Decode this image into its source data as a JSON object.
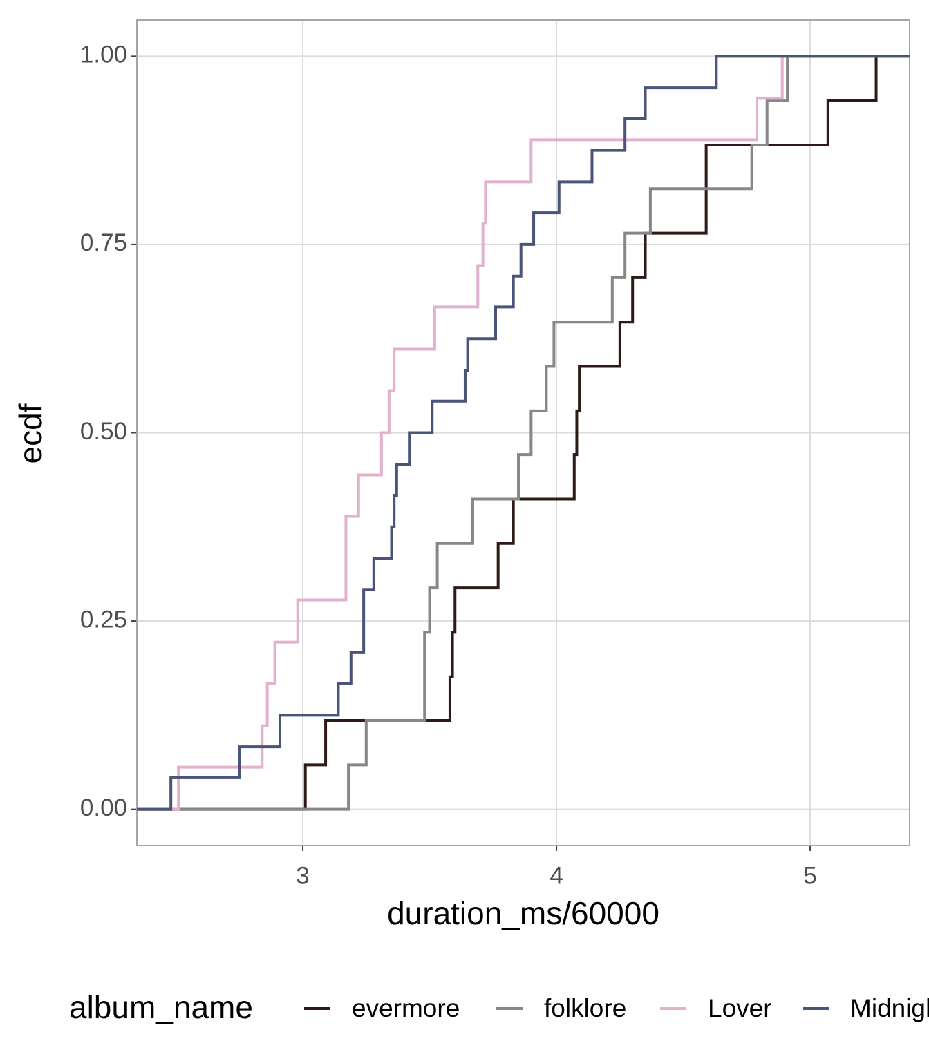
{
  "chart_data": {
    "type": "step",
    "x_label": "duration_ms/60000",
    "y_label": "ecdf",
    "legend_title": "album_name",
    "legend_position": "bottom",
    "grid": true,
    "xlim": [
      2.346,
      5.392
    ],
    "xticks": [
      3,
      4,
      5
    ],
    "ylim": [
      -0.048,
      1.048
    ],
    "yticks": [
      {
        "value": 0,
        "label": "0.00"
      },
      {
        "value": 0.25,
        "label": "0.25"
      },
      {
        "value": 0.5,
        "label": "0.50"
      },
      {
        "value": 0.75,
        "label": "0.75"
      },
      {
        "value": 1,
        "label": "1.00"
      }
    ],
    "series": [
      {
        "name": "evermore",
        "color": "#2e1a17",
        "x": [
          3.01,
          3.09,
          3.58,
          3.59,
          3.6,
          3.77,
          3.83,
          4.07,
          4.08,
          4.09,
          4.25,
          4.3,
          4.35,
          4.59,
          5.07,
          5.26
        ],
        "values": [
          0.059,
          0.118,
          0.176,
          0.235,
          0.294,
          0.353,
          0.412,
          0.471,
          0.529,
          0.588,
          0.647,
          0.706,
          0.765,
          0.882,
          0.941,
          1.0
        ]
      },
      {
        "name": "folklore",
        "color": "#878787",
        "x": [
          3.18,
          3.25,
          3.48,
          3.5,
          3.53,
          3.67,
          3.85,
          3.9,
          3.96,
          3.99,
          4.22,
          4.27,
          4.37,
          4.77,
          4.83,
          4.91
        ],
        "values": [
          0.059,
          0.118,
          0.235,
          0.294,
          0.353,
          0.412,
          0.471,
          0.529,
          0.588,
          0.647,
          0.706,
          0.765,
          0.824,
          0.882,
          0.941,
          1.0
        ]
      },
      {
        "name": "Lover",
        "color": "#e2b1cd",
        "x": [
          2.51,
          2.84,
          2.86,
          2.89,
          2.98,
          3.17,
          3.22,
          3.31,
          3.34,
          3.36,
          3.52,
          3.69,
          3.71,
          3.72,
          3.9,
          4.79,
          4.89
        ],
        "values": [
          0.056,
          0.111,
          0.167,
          0.222,
          0.278,
          0.389,
          0.444,
          0.5,
          0.556,
          0.611,
          0.667,
          0.722,
          0.778,
          0.833,
          0.889,
          0.944,
          1.0
        ]
      },
      {
        "name": "Midnights",
        "color": "#4a5378",
        "x": [
          2.48,
          2.75,
          2.91,
          3.14,
          3.19,
          3.24,
          3.28,
          3.35,
          3.36,
          3.37,
          3.42,
          3.51,
          3.64,
          3.65,
          3.76,
          3.83,
          3.86,
          3.91,
          4.01,
          4.14,
          4.27,
          4.35,
          4.63
        ],
        "values": [
          0.042,
          0.083,
          0.125,
          0.167,
          0.208,
          0.292,
          0.333,
          0.375,
          0.417,
          0.458,
          0.5,
          0.542,
          0.583,
          0.625,
          0.667,
          0.708,
          0.75,
          0.792,
          0.833,
          0.875,
          0.917,
          0.958,
          1.0
        ]
      }
    ]
  }
}
